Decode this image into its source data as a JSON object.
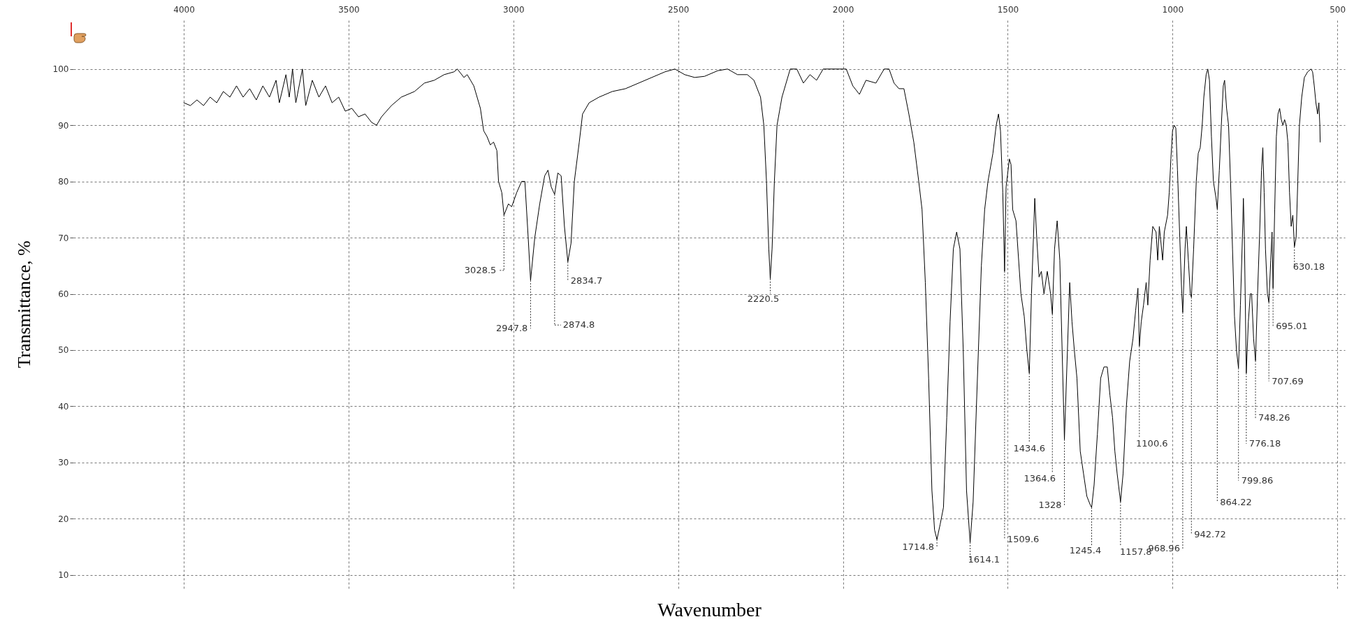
{
  "chart_data": {
    "type": "line",
    "xlabel": "Wavenumber",
    "ylabel": "Transmittance, %",
    "xlim": [
      4335,
      477
    ],
    "ylim": [
      7.6,
      108.8
    ],
    "xticks": [
      4000,
      3500,
      3000,
      2500,
      2000,
      1500,
      1000,
      500
    ],
    "yticks": [
      10,
      20,
      30,
      40,
      50,
      60,
      70,
      80,
      90,
      100
    ],
    "grid": true,
    "series": [
      {
        "color": "#000000",
        "x": [
          4000,
          3980,
          3960,
          3940,
          3920,
          3900,
          3880,
          3860,
          3840,
          3820,
          3800,
          3780,
          3760,
          3740,
          3720,
          3710,
          3690,
          3680,
          3670,
          3660,
          3640,
          3630,
          3610,
          3590,
          3570,
          3550,
          3530,
          3510,
          3490,
          3470,
          3450,
          3430,
          3415,
          3400,
          3370,
          3340,
          3300,
          3270,
          3240,
          3210,
          3180,
          3170,
          3150,
          3140,
          3120,
          3100,
          3090,
          3080,
          3070,
          3060,
          3050,
          3045,
          3035,
          3028.5,
          3015,
          3005,
          2990,
          2975,
          2965,
          2955,
          2947.8,
          2935,
          2920,
          2905,
          2895,
          2885,
          2874.8,
          2865,
          2855,
          2845,
          2834.7,
          2825,
          2815,
          2800,
          2790,
          2770,
          2740,
          2700,
          2660,
          2620,
          2580,
          2540,
          2510,
          2480,
          2450,
          2420,
          2380,
          2350,
          2320,
          2290,
          2270,
          2250,
          2240,
          2232,
          2225,
          2220.5,
          2215,
          2208,
          2200,
          2185,
          2160,
          2140,
          2120,
          2100,
          2080,
          2060,
          2010,
          1990,
          1970,
          1950,
          1930,
          1900,
          1885,
          1875,
          1860,
          1845,
          1830,
          1815,
          1800,
          1785,
          1770,
          1760,
          1750,
          1740,
          1730,
          1722,
          1714.8,
          1705,
          1695,
          1685,
          1675,
          1665,
          1655,
          1645,
          1635,
          1625,
          1614.1,
          1605,
          1595,
          1580,
          1570,
          1560,
          1545,
          1535,
          1528,
          1522,
          1515,
          1509.6,
          1505,
          1495,
          1490,
          1485,
          1475,
          1460,
          1450,
          1442,
          1434.6,
          1428,
          1422,
          1418,
          1412,
          1405,
          1398,
          1390,
          1380,
          1370,
          1364.6,
          1358,
          1350,
          1342,
          1335,
          1328,
          1320,
          1312,
          1305,
          1298,
          1290,
          1280,
          1270,
          1260,
          1250,
          1245.4,
          1238,
          1228,
          1218,
          1208,
          1198,
          1190,
          1182,
          1175,
          1168,
          1157.8,
          1150,
          1140,
          1130,
          1120,
          1112,
          1105,
          1100.6,
          1095,
          1088,
          1080,
          1075,
          1068,
          1060,
          1050,
          1045,
          1040,
          1030,
          1025,
          1015,
          1010,
          1005,
          1000,
          995,
          990,
          985,
          978,
          972,
          968.96,
          962,
          958,
          952,
          946,
          942.72,
          936,
          928,
          922,
          916,
          910,
          905,
          898,
          893,
          888,
          882,
          876,
          868,
          864.22,
          858,
          852,
          846,
          842,
          836,
          830,
          824,
          818,
          812,
          806,
          799.86,
          794,
          788,
          785,
          782,
          776.18,
          770,
          764,
          760,
          754,
          748.26,
          742,
          735,
          730,
          726,
          722,
          718,
          712,
          707.69,
          702,
          698,
          695.01,
          690,
          685,
          680,
          675,
          670,
          665,
          660,
          655,
          650,
          645,
          640,
          635,
          630.18,
          625,
          620,
          615,
          608,
          600,
          590,
          580,
          575,
          570,
          565,
          560,
          556,
          553,
          552
        ],
        "values": [
          94,
          93.5,
          94.5,
          93.5,
          95,
          94,
          96,
          95,
          97,
          95,
          96.5,
          94.5,
          97,
          95,
          98,
          94,
          99,
          95,
          100,
          94,
          100,
          93.5,
          98,
          95,
          97,
          94,
          95,
          92.5,
          93,
          91.5,
          92,
          90.5,
          90,
          91.5,
          93.5,
          95,
          96,
          97.5,
          98,
          99,
          99.5,
          100,
          98.5,
          99,
          97,
          93,
          89,
          88,
          86.5,
          87,
          85.5,
          80,
          78,
          74,
          76,
          75.5,
          78,
          80,
          80,
          70,
          62.4,
          70,
          76,
          81,
          82,
          79,
          77.7,
          81.5,
          81,
          72,
          65.7,
          69,
          80,
          87,
          92,
          94,
          95,
          96,
          96.5,
          97.5,
          98.5,
          99.5,
          100,
          99,
          98.5,
          98.7,
          99.7,
          100,
          99,
          99,
          98,
          95,
          90,
          80,
          68,
          62.7,
          68,
          80,
          90,
          95,
          100,
          100,
          97.5,
          99,
          98,
          100,
          100,
          100,
          97,
          95.5,
          98,
          97.5,
          99,
          100,
          100,
          97.5,
          96.5,
          96.5,
          92,
          87,
          80,
          75,
          62,
          45,
          25,
          18,
          16.3,
          19,
          22,
          38,
          55,
          68,
          71,
          68,
          50,
          25,
          15.8,
          23,
          40,
          65,
          75,
          80,
          85,
          90,
          92,
          89,
          78,
          64,
          79,
          84,
          83,
          75,
          73,
          60,
          56,
          50,
          45.9,
          60,
          70,
          77,
          70,
          63,
          64,
          60,
          64,
          60,
          56.4,
          68,
          73,
          66,
          50,
          34.1,
          48,
          62,
          55,
          50,
          45,
          32,
          28,
          24,
          22.5,
          22,
          26,
          35,
          45,
          47,
          47,
          42,
          38,
          32,
          28,
          23,
          28,
          40,
          48,
          52,
          57,
          61,
          50.7,
          55,
          58,
          62,
          58,
          66,
          72,
          71,
          66,
          72,
          66,
          71,
          74,
          78,
          84,
          89,
          90,
          89.5,
          82,
          70,
          60,
          56.7,
          68,
          72,
          66,
          60,
          59.4,
          68,
          80,
          85,
          86,
          90,
          95,
          99,
          100,
          98,
          88,
          80,
          77,
          75.1,
          82,
          90,
          97,
          98,
          93,
          90,
          80,
          68,
          56,
          50,
          46.8,
          58,
          70,
          77,
          70,
          45.9,
          55,
          60,
          60,
          52,
          48.1,
          60,
          72,
          82,
          86,
          78,
          68,
          60,
          58.5,
          66,
          71,
          61,
          75,
          88,
          92,
          93,
          91,
          90,
          91,
          90,
          87,
          78,
          72,
          74,
          68.4,
          70,
          80,
          90,
          95,
          98.5,
          99.5,
          100,
          99.5,
          97,
          94,
          92,
          94,
          90,
          87
        ]
      }
    ],
    "annotations": [
      {
        "text": "3028.5",
        "x": 3028.5,
        "y": 74
      },
      {
        "text": "2947.8",
        "x": 2947.8,
        "y": 62.4
      },
      {
        "text": "2874.8",
        "x": 2874.8,
        "y": 77.7
      },
      {
        "text": "2834.7",
        "x": 2834.7,
        "y": 65.7
      },
      {
        "text": "2220.5",
        "x": 2220.5,
        "y": 62.7
      },
      {
        "text": "1714.8",
        "x": 1714.8,
        "y": 16.3
      },
      {
        "text": "1614.1",
        "x": 1614.1,
        "y": 15.8
      },
      {
        "text": "1509.6",
        "x": 1509.6,
        "y": 64
      },
      {
        "text": "1434.6",
        "x": 1434.6,
        "y": 45.9
      },
      {
        "text": "1364.6",
        "x": 1364.6,
        "y": 56.4
      },
      {
        "text": "1328",
        "x": 1328,
        "y": 34.1
      },
      {
        "text": "1245.4",
        "x": 1245.4,
        "y": 22
      },
      {
        "text": "1157.8",
        "x": 1157.8,
        "y": 23
      },
      {
        "text": "1100.6",
        "x": 1100.6,
        "y": 50.7
      },
      {
        "text": "968.96",
        "x": 968.96,
        "y": 56.7
      },
      {
        "text": "942.72",
        "x": 942.72,
        "y": 59.4
      },
      {
        "text": "864.22",
        "x": 864.22,
        "y": 75.1
      },
      {
        "text": "799.86",
        "x": 799.86,
        "y": 46.8
      },
      {
        "text": "776.18",
        "x": 776.18,
        "y": 45.9
      },
      {
        "text": "748.26",
        "x": 748.26,
        "y": 48.1
      },
      {
        "text": "707.69",
        "x": 707.69,
        "y": 58.5
      },
      {
        "text": "695.01",
        "x": 695.01,
        "y": 61
      },
      {
        "text": "630.18",
        "x": 630.18,
        "y": 68.4
      }
    ]
  }
}
